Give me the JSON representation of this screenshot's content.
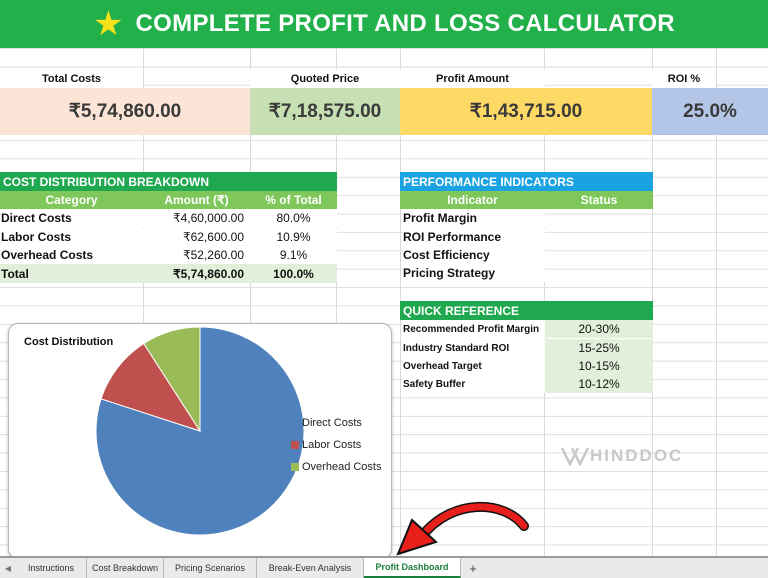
{
  "header": {
    "title": "COMPLETE PROFIT AND LOSS CALCULATOR",
    "star_icon": "★"
  },
  "summary": [
    {
      "label": "Total Costs",
      "value": "₹5,74,860.00",
      "color": "#fce4d6"
    },
    {
      "label": "Quoted Price",
      "value": "₹7,18,575.00",
      "color": "#c6e0b4"
    },
    {
      "label": "Profit Amount",
      "value": "₹1,43,715.00",
      "color": "#ffd966"
    },
    {
      "label": "ROI %",
      "value": "25.0%",
      "color": "#b4c6e7"
    }
  ],
  "cost_breakdown": {
    "title": "COST DISTRIBUTION BREAKDOWN",
    "columns": [
      "Category",
      "Amount (₹)",
      "% of Total"
    ],
    "rows": [
      {
        "category": "Direct Costs",
        "amount": "₹4,60,000.00",
        "pct": "80.0%"
      },
      {
        "category": "Labor Costs",
        "amount": "₹62,600.00",
        "pct": "10.9%"
      },
      {
        "category": "Overhead Costs",
        "amount": "₹52,260.00",
        "pct": "9.1%"
      }
    ],
    "total": {
      "category": "Total",
      "amount": "₹5,74,860.00",
      "pct": "100.0%"
    }
  },
  "performance": {
    "title": "PERFORMANCE INDICATORS",
    "columns": [
      "Indicator",
      "Status"
    ],
    "rows": [
      "Profit Margin",
      "ROI Performance",
      "Cost Efficiency",
      "Pricing Strategy"
    ]
  },
  "quick_reference": {
    "title": "QUICK REFERENCE",
    "rows": [
      {
        "label": "Recommended Profit Margin",
        "value": "20-30%"
      },
      {
        "label": "Industry Standard ROI",
        "value": "15-25%"
      },
      {
        "label": "Overhead Target",
        "value": "10-15%"
      },
      {
        "label": "Safety Buffer",
        "value": "10-12%"
      }
    ]
  },
  "chart_data": {
    "type": "pie",
    "title": "Cost Distribution",
    "categories": [
      "Direct Costs",
      "Labor Costs",
      "Overhead Costs"
    ],
    "values": [
      80.0,
      10.9,
      9.1
    ],
    "colors": [
      "#4f81bd",
      "#c0504d",
      "#9bbb59"
    ],
    "legend": "right"
  },
  "watermark": "HINDDOC",
  "tabs": [
    {
      "label": "Instructions",
      "active": false
    },
    {
      "label": "Cost Breakdown",
      "active": false
    },
    {
      "label": "Pricing Scenarios",
      "active": false
    },
    {
      "label": "Break-Even Analysis",
      "active": false
    },
    {
      "label": "Profit Dashboard",
      "active": true
    }
  ],
  "tab_add_label": "+",
  "colors": {
    "green_header": "#22b04a",
    "section_green": "#1fa84f",
    "section_blue": "#1aa3e0",
    "col_head_green": "#7fc75a",
    "light_green": "#e2efda"
  }
}
